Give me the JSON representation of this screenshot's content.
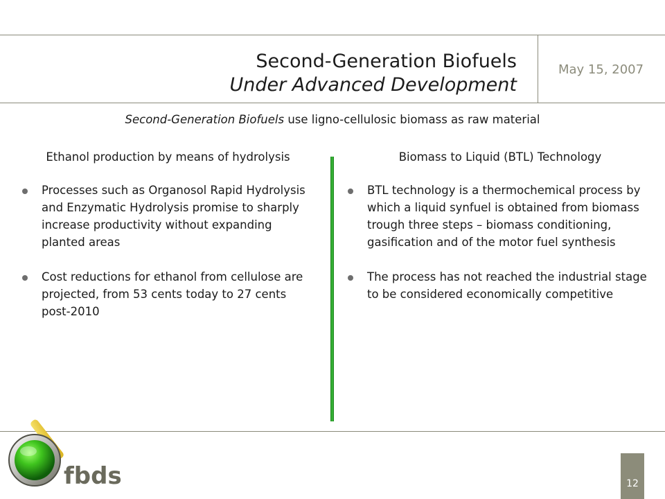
{
  "header": {
    "title_line1": "Second-Generation Biofuels",
    "title_line2": "Under Advanced Development",
    "date": "May 15, 2007"
  },
  "subtitle": {
    "italic_part": "Second-Generation Biofuels",
    "rest": "use ligno-cellulosic biomass as raw material"
  },
  "left_column": {
    "heading": "Ethanol production by means of hydrolysis",
    "bullets": [
      "Processes such as Organosol Rapid Hydrolysis and Enzymatic Hydrolysis promise to sharply increase productivity without expanding planted areas",
      "Cost reductions for ethanol from cellulose are projected, from 53 cents today to 27 cents post-2010"
    ]
  },
  "right_column": {
    "heading": "Biomass to Liquid (BTL) Technology",
    "bullets": [
      "BTL technology is a thermochemical process by which a liquid synfuel is obtained from biomass trough three steps – biomass conditioning, gasification and of the motor fuel synthesis",
      "The process has not reached the industrial stage to be considered economically competitive"
    ]
  },
  "footer": {
    "logo_text": "fbds",
    "page_number": "12"
  },
  "colors": {
    "divider_green": "#2ea82e",
    "rule_gray": "#8a8a7a",
    "page_box": "#8c8c7a",
    "logo_text": "#6a6a5c"
  },
  "icons": [
    "fbds-logo-icon",
    "bullet-dot-icon"
  ]
}
